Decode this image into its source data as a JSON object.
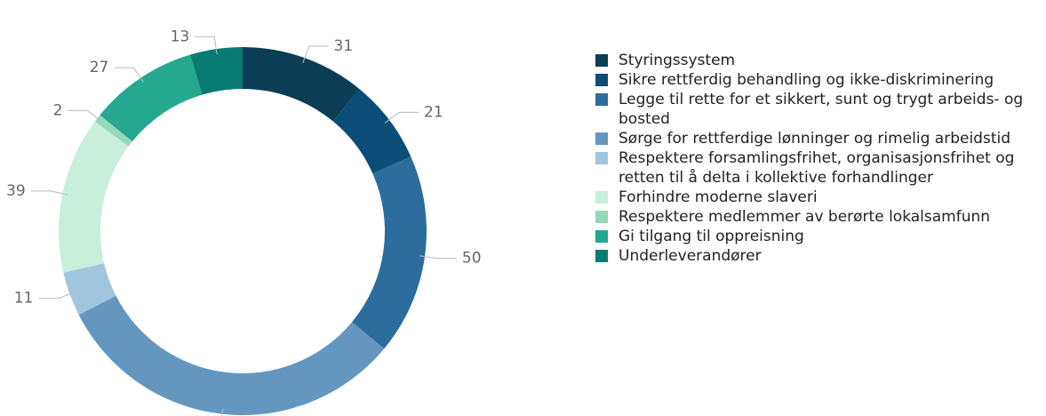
{
  "chart_data": {
    "type": "donut",
    "categories": [
      "Styringssystem",
      "Sikre rettferdig behandling og ikke-diskriminering",
      "Legge til rette for et sikkert, sunt og trygt arbeids- og bosted",
      "Sørge for rettferdige lønninger og rimelig arbeidstid",
      "Respektere forsamlingsfrihet, organisasjonsfrihet og retten til å delta i kollektive forhandlinger",
      "Forhindre moderne slaveri",
      "Respektere medlemmer av berørte lokalsamfunn",
      "Gi tilgang til oppreisning",
      "Underleverandører"
    ],
    "values": [
      31,
      21,
      50,
      89,
      11,
      39,
      2,
      27,
      13
    ],
    "colors": [
      "#0b3d55",
      "#0c4c78",
      "#2d6d9d",
      "#6497c0",
      "#a2c5de",
      "#c8efdc",
      "#95d8ba",
      "#24a88f",
      "#077b71"
    ],
    "legend": "right"
  }
}
